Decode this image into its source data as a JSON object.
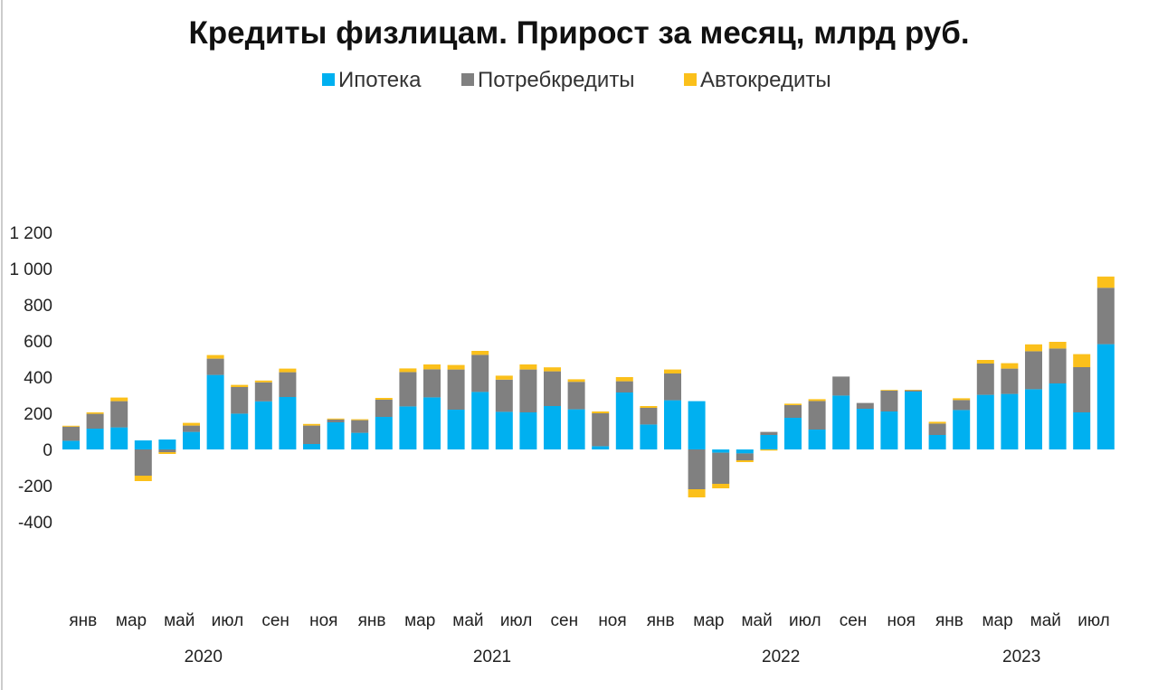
{
  "chart_data": {
    "type": "bar",
    "stacked": true,
    "title": "Кредиты физлицам. Прирост за месяц, млрд руб.",
    "ylim": [
      -400,
      1200
    ],
    "yticks": [
      -400,
      -200,
      0,
      200,
      400,
      600,
      800,
      1000,
      1200
    ],
    "ytick_labels": [
      "-400",
      "-200",
      "0",
      "200",
      "400",
      "600",
      "800",
      "1 000",
      "1 200"
    ],
    "legend_position": "top-center",
    "month_labels": [
      "янв",
      "",
      "мар",
      "",
      "май",
      "",
      "июл",
      "",
      "сен",
      "",
      "ноя",
      "",
      "янв",
      "",
      "мар",
      "",
      "май",
      "",
      "июл",
      "",
      "сен",
      "",
      "ноя",
      "",
      "янв",
      "",
      "мар",
      "",
      "май",
      "",
      "июл",
      "",
      "сен",
      "",
      "ноя",
      "",
      "янв",
      "",
      "мар",
      "",
      "май",
      "",
      "июл",
      ""
    ],
    "years": [
      {
        "label": "2020",
        "start": 0,
        "end": 11
      },
      {
        "label": "2021",
        "start": 12,
        "end": 23
      },
      {
        "label": "2022",
        "start": 24,
        "end": 35
      },
      {
        "label": "2023",
        "start": 36,
        "end": 43
      }
    ],
    "series": [
      {
        "name": "Ипотека",
        "color": "#00b0f0",
        "values": [
          48,
          115,
          122,
          50,
          55,
          97,
          412,
          198,
          266,
          290,
          30,
          150,
          92,
          180,
          238,
          288,
          220,
          318,
          208,
          205,
          240,
          222,
          18,
          315,
          138,
          272,
          267,
          -18,
          -22,
          80,
          175,
          110,
          298,
          225,
          210,
          320,
          80,
          218,
          302,
          307,
          333,
          365,
          205,
          582
        ]
      },
      {
        "name": "Потребкредиты",
        "color": "#808080",
        "values": [
          78,
          82,
          145,
          -145,
          -15,
          35,
          90,
          147,
          105,
          137,
          102,
          16,
          70,
          95,
          190,
          155,
          222,
          205,
          178,
          237,
          192,
          152,
          182,
          62,
          92,
          148,
          -220,
          -172,
          -38,
          17,
          70,
          158,
          105,
          32,
          115,
          7,
          63,
          55,
          173,
          140,
          210,
          193,
          250,
          312
        ]
      },
      {
        "name": "Автокредиты",
        "color": "#fbc01b",
        "values": [
          5,
          8,
          20,
          -30,
          -10,
          15,
          20,
          12,
          10,
          20,
          9,
          5,
          5,
          10,
          20,
          27,
          25,
          22,
          22,
          28,
          22,
          14,
          10,
          23,
          10,
          22,
          -45,
          -25,
          -10,
          -6,
          8,
          10,
          0,
          0,
          4,
          3,
          10,
          10,
          20,
          30,
          38,
          37,
          72,
          62
        ]
      }
    ]
  }
}
